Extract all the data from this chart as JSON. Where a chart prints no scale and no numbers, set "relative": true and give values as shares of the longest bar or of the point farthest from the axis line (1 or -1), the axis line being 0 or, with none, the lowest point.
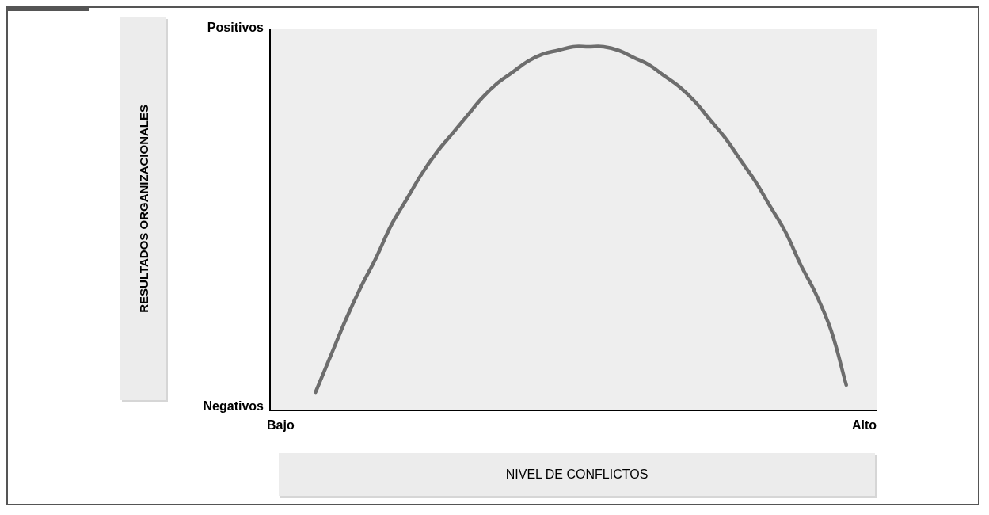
{
  "chart_data": {
    "type": "line",
    "relative": true,
    "xlabel": "NIVEL DE CONFLICTOS",
    "annotations": [
      "Positivos",
      "Negativos",
      "Bajo",
      "Alto",
      "RESULTADOS ORGANIZACIONALES"
    ],
    "categories": [
      null,
      null,
      null,
      null,
      null,
      null,
      null,
      null,
      null,
      null,
      null,
      null,
      null,
      null,
      null,
      null,
      null,
      null,
      null,
      null,
      null,
      null,
      null,
      null,
      null,
      null,
      null,
      null,
      null,
      null,
      null,
      null,
      null,
      null,
      null,
      null,
      null,
      null,
      null,
      null,
      null
    ],
    "series": [
      {
        "color": "#6d6d6d",
        "values": [
          null,
          null,
          null,
          0.05,
          0.15,
          0.25,
          0.34,
          0.42,
          0.51,
          0.58,
          0.65,
          0.71,
          0.76,
          0.81,
          0.86,
          0.9,
          0.93,
          0.96,
          0.98,
          0.99,
          1,
          1,
          1,
          0.99,
          0.97,
          0.95,
          0.92,
          0.89,
          0.85,
          0.8,
          0.75,
          0.69,
          0.63,
          0.56,
          0.49,
          0.4,
          0.32,
          0.22,
          0.07,
          null,
          null
        ]
      }
    ],
    "legend": false
  }
}
